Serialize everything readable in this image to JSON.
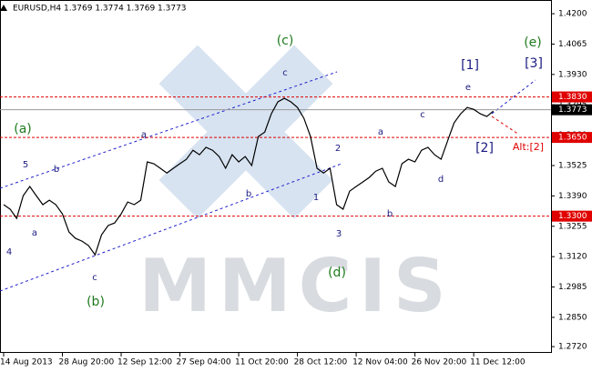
{
  "chart_data": {
    "type": "line",
    "header": "EURUSD,H4  1.3769 1.3774 1.3769 1.3773",
    "watermark": "MMCIS",
    "categories": [
      "14 Aug 2013",
      null,
      null,
      null,
      null,
      null,
      null,
      null,
      null,
      "28 Aug 20:00",
      null,
      null,
      null,
      null,
      null,
      null,
      null,
      null,
      "12 Sep 12:00",
      null,
      null,
      null,
      null,
      null,
      null,
      null,
      null,
      "27 Sep 04:00",
      null,
      null,
      null,
      null,
      null,
      null,
      null,
      null,
      "11 Oct 20:00",
      null,
      null,
      null,
      null,
      null,
      null,
      null,
      null,
      "28 Oct 12:00",
      null,
      null,
      null,
      null,
      null,
      null,
      null,
      null,
      "12 Nov 04:00",
      null,
      null,
      null,
      null,
      null,
      null,
      null,
      null,
      "26 Nov 20:00",
      null,
      null,
      null,
      null,
      null,
      null,
      null,
      null,
      "11 Dec 12:00",
      null,
      null,
      null
    ],
    "series": [
      {
        "name": "EURUSD,H4",
        "color": "#000000",
        "values": [
          1.3351,
          1.3331,
          1.329,
          1.3391,
          1.3432,
          1.3391,
          1.3351,
          1.3371,
          1.3351,
          1.331,
          1.323,
          1.3201,
          1.3189,
          1.3169,
          1.3128,
          1.3217,
          1.3258,
          1.327,
          1.331,
          1.3363,
          1.3351,
          1.3371,
          1.3541,
          1.3533,
          1.3513,
          1.3492,
          1.3513,
          1.3533,
          1.3553,
          1.3593,
          1.3573,
          1.3606,
          1.3593,
          1.3565,
          1.3513,
          1.3573,
          1.3541,
          1.3565,
          1.3525,
          1.3654,
          1.3674,
          1.3755,
          1.3808,
          1.3824,
          1.3808,
          1.3783,
          1.3735,
          1.3654,
          1.3513,
          1.3492,
          1.3513,
          1.3351,
          1.3331,
          1.3411,
          1.3432,
          1.3452,
          1.3472,
          1.35,
          1.3513,
          1.3452,
          1.3432,
          1.3533,
          1.3553,
          1.3541,
          1.3593,
          1.3606,
          1.3573,
          1.3553,
          1.3634,
          1.3715,
          1.3755,
          1.3783,
          1.3775,
          1.3755,
          1.3743,
          1.3767
        ]
      }
    ],
    "ylim": [
      1.2692,
      1.4261
    ],
    "yticks": [
      {
        "value": 1.42,
        "label": "1.4200"
      },
      {
        "value": 1.4065,
        "label": "1.4065"
      },
      {
        "value": 1.393,
        "label": "1.3930"
      },
      {
        "value": 1.3795,
        "label": "1.3795"
      },
      {
        "value": 1.366,
        "label": "1.3660"
      },
      {
        "value": 1.3525,
        "label": "1.3525"
      },
      {
        "value": 1.339,
        "label": "1.3390"
      },
      {
        "value": 1.3255,
        "label": "1.3255"
      },
      {
        "value": 1.312,
        "label": "1.3120"
      },
      {
        "value": 1.2985,
        "label": "1.2985"
      },
      {
        "value": 1.285,
        "label": "1.2850"
      },
      {
        "value": 1.272,
        "label": "1.2720"
      }
    ],
    "levels": [
      {
        "value": 1.383,
        "label": "1.3830",
        "color": "#e00000"
      },
      {
        "value": 1.365,
        "label": "1.3650",
        "color": "#e00000"
      },
      {
        "value": 1.33,
        "label": "1.3300",
        "color": "#e00000"
      }
    ],
    "current_price": {
      "value": 1.3773,
      "label": "1.3773",
      "color": "#000000"
    },
    "annotations": [
      {
        "text": "(a)",
        "color": "#1e7b1e"
      },
      {
        "text": "(b)",
        "color": "#1e7b1e"
      },
      {
        "text": "(c)",
        "color": "#1e7b1e"
      },
      {
        "text": "(d)",
        "color": "#1e7b1e"
      },
      {
        "text": "(e)",
        "color": "#1e7b1e"
      },
      {
        "text": "5",
        "color": "#1a1a80"
      },
      {
        "text": "b",
        "color": "#1a1a80"
      },
      {
        "text": "a",
        "color": "#1a1a80"
      },
      {
        "text": "4",
        "color": "#1a1a80"
      },
      {
        "text": "c",
        "color": "#1a1a80"
      },
      {
        "text": "a",
        "color": "#1a1a80"
      },
      {
        "text": "b",
        "color": "#1a1a80"
      },
      {
        "text": "c",
        "color": "#1a1a80"
      },
      {
        "text": "1",
        "color": "#1a1a80"
      },
      {
        "text": "2",
        "color": "#1a1a80"
      },
      {
        "text": "3",
        "color": "#1a1a80"
      },
      {
        "text": "a",
        "color": "#1a1a80"
      },
      {
        "text": "b",
        "color": "#1a1a80"
      },
      {
        "text": "c",
        "color": "#1a1a80"
      },
      {
        "text": "d",
        "color": "#1a1a80"
      },
      {
        "text": "e",
        "color": "#1a1a80"
      },
      {
        "text": "[1]",
        "color": "#1a1a80"
      },
      {
        "text": "[2]",
        "color": "#1a1a80"
      },
      {
        "text": "[3]",
        "color": "#1a1a80"
      },
      {
        "text": "Alt:[2]",
        "color": "#e00000"
      }
    ]
  }
}
